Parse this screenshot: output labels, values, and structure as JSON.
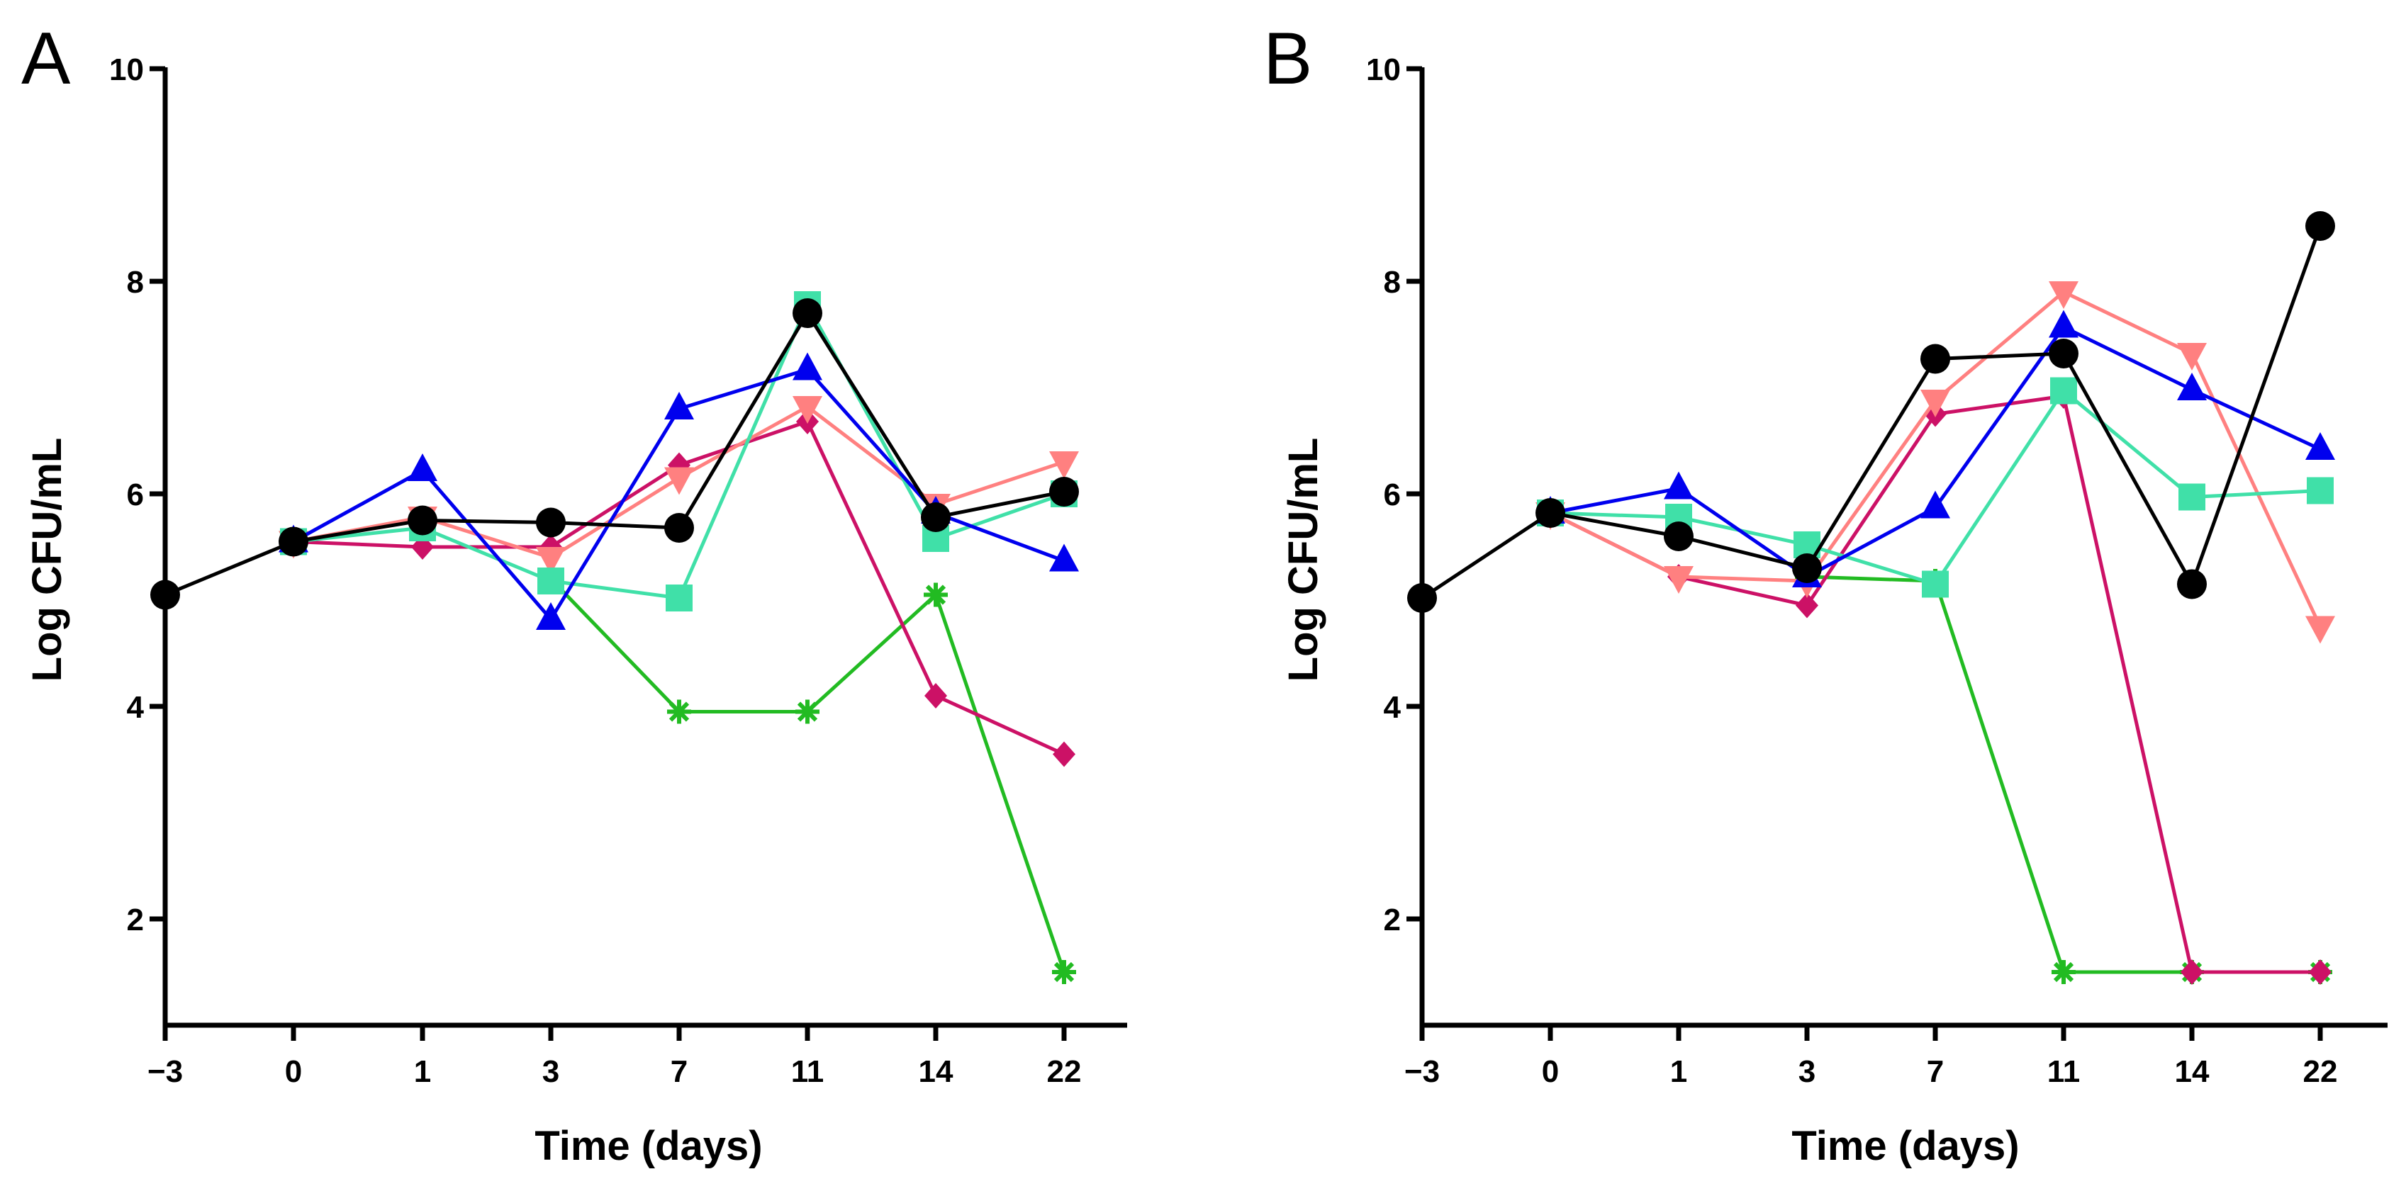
{
  "chart_data": [
    {
      "type": "line",
      "panel_label": "A",
      "xlabel": "Time (days)",
      "ylabel": "Log CFU/mL",
      "categories": [
        "−3",
        "0",
        "1",
        "3",
        "7",
        "11",
        "14",
        "22"
      ],
      "ylim": [
        1,
        10
      ],
      "yticks": [
        "2",
        "4",
        "6",
        "8",
        "10"
      ],
      "ytick_values": [
        2,
        4,
        6,
        8,
        10
      ],
      "series": [
        {
          "name": "green",
          "color": "#22bb22",
          "marker": "asterisk",
          "values": [
            null,
            null,
            null,
            5.2,
            3.95,
            3.95,
            5.05,
            1.5
          ]
        },
        {
          "name": "crimson",
          "color": "#cc1166",
          "marker": "diamond",
          "values": [
            null,
            5.55,
            5.5,
            5.5,
            6.27,
            6.68,
            4.1,
            3.55
          ]
        },
        {
          "name": "salmon",
          "color": "#ff8080",
          "marker": "triangle-down",
          "values": [
            null,
            5.55,
            5.78,
            5.4,
            6.15,
            6.82,
            5.9,
            6.3
          ]
        },
        {
          "name": "aqua",
          "color": "#40e0a8",
          "marker": "square",
          "values": [
            null,
            5.55,
            5.68,
            5.18,
            5.02,
            7.78,
            5.58,
            6.0
          ]
        },
        {
          "name": "blue",
          "color": "#0000ee",
          "marker": "triangle-up",
          "values": [
            null,
            5.55,
            6.22,
            4.82,
            6.8,
            7.17,
            5.82,
            5.37
          ]
        },
        {
          "name": "black",
          "color": "#000000",
          "marker": "circle",
          "values": [
            5.05,
            5.55,
            5.75,
            5.73,
            5.68,
            7.7,
            5.78,
            6.02
          ]
        }
      ]
    },
    {
      "type": "line",
      "panel_label": "B",
      "xlabel": "Time (days)",
      "ylabel": "Log CFU/mL",
      "categories": [
        "−3",
        "0",
        "1",
        "3",
        "7",
        "11",
        "14",
        "22"
      ],
      "ylim": [
        1,
        10
      ],
      "yticks": [
        "2",
        "4",
        "6",
        "8",
        "10"
      ],
      "ytick_values": [
        2,
        4,
        6,
        8,
        10
      ],
      "series": [
        {
          "name": "green",
          "color": "#22bb22",
          "marker": "asterisk",
          "values": [
            null,
            null,
            null,
            5.22,
            5.18,
            1.5,
            1.5,
            1.5
          ]
        },
        {
          "name": "crimson",
          "color": "#cc1166",
          "marker": "diamond",
          "values": [
            null,
            5.82,
            5.22,
            4.95,
            6.75,
            6.92,
            1.5,
            1.5
          ]
        },
        {
          "name": "salmon",
          "color": "#ff8080",
          "marker": "triangle-down",
          "values": [
            null,
            5.82,
            5.22,
            5.18,
            6.88,
            7.9,
            7.32,
            4.75
          ]
        },
        {
          "name": "aqua",
          "color": "#40e0a8",
          "marker": "square",
          "values": [
            null,
            5.82,
            5.78,
            5.52,
            5.15,
            6.97,
            5.97,
            6.03
          ]
        },
        {
          "name": "blue",
          "color": "#0000ee",
          "marker": "triangle-up",
          "values": [
            null,
            5.82,
            6.05,
            5.22,
            5.87,
            7.57,
            6.98,
            6.42
          ]
        },
        {
          "name": "black",
          "color": "#000000",
          "marker": "circle",
          "values": [
            5.02,
            5.82,
            5.6,
            5.3,
            7.27,
            7.32,
            5.15,
            8.52
          ]
        }
      ]
    }
  ]
}
